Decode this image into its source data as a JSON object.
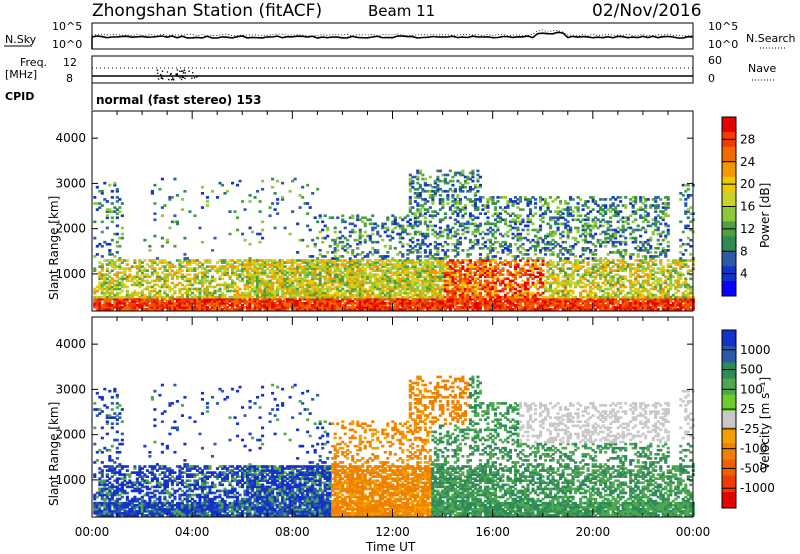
{
  "header": {
    "title": "Zhongshan Station (fitACF)",
    "beam": "Beam 11",
    "date": "02/Nov/2016"
  },
  "top_panels": {
    "nsky_label": "N.Sky",
    "nsearch_label": "N.Search",
    "noise_ticks": [
      "10^5",
      "10^0"
    ],
    "freq_label_1": "Freq.",
    "freq_label_2": "[MHz]",
    "freq_ticks": [
      "12",
      "8"
    ],
    "nave_label": "Nave",
    "nave_ticks": [
      "60",
      "0"
    ],
    "cpid_label": "CPID",
    "cpid_text": "normal (fast stereo) 153"
  },
  "chart_data": [
    {
      "type": "heatmap",
      "name": "power",
      "ylabel": "Slant Range [km]",
      "y_ticks": [
        1000,
        2000,
        3000,
        4000
      ],
      "ylim": [
        180,
        4600
      ],
      "x_ticks": [
        "00:00",
        "04:00",
        "08:00",
        "12:00",
        "16:00",
        "20:00",
        "00:00"
      ],
      "xlim_hours": [
        0,
        24
      ],
      "colorbar": {
        "label": "Power [dB]",
        "ticks": [
          "4",
          "8",
          "12",
          "16",
          "20",
          "24",
          "28"
        ],
        "range": [
          0,
          30
        ],
        "colors": [
          "#0a00ff",
          "#1432c8",
          "#2c5aa8",
          "#2e8a50",
          "#4fa040",
          "#8cc83c",
          "#c8d228",
          "#f0c800",
          "#f09a00",
          "#f06a00",
          "#f03c00",
          "#e60000"
        ]
      }
    },
    {
      "type": "heatmap",
      "name": "velocity",
      "ylabel": "Slant Range [km]",
      "y_ticks": [
        1000,
        2000,
        3000,
        4000
      ],
      "ylim": [
        180,
        4600
      ],
      "x_ticks": [
        "00:00",
        "04:00",
        "08:00",
        "12:00",
        "16:00",
        "20:00",
        "00:00"
      ],
      "xlim_hours": [
        0,
        24
      ],
      "xlabel": "Time UT",
      "colorbar": {
        "label": "Velocity [m s⁻¹]",
        "ticks": [
          "1000",
          "500",
          "100",
          "25",
          "-25",
          "-100",
          "-500",
          "-1000"
        ],
        "colors": [
          "#1432c8",
          "#2c5aa8",
          "#2e8a5a",
          "#4fa84f",
          "#6ccc2c",
          "#c8c8c8",
          "#f0a000",
          "#f08000",
          "#f06000",
          "#f03c00",
          "#e60000"
        ]
      }
    }
  ],
  "bottom": {
    "xlabel": "Time UT"
  }
}
